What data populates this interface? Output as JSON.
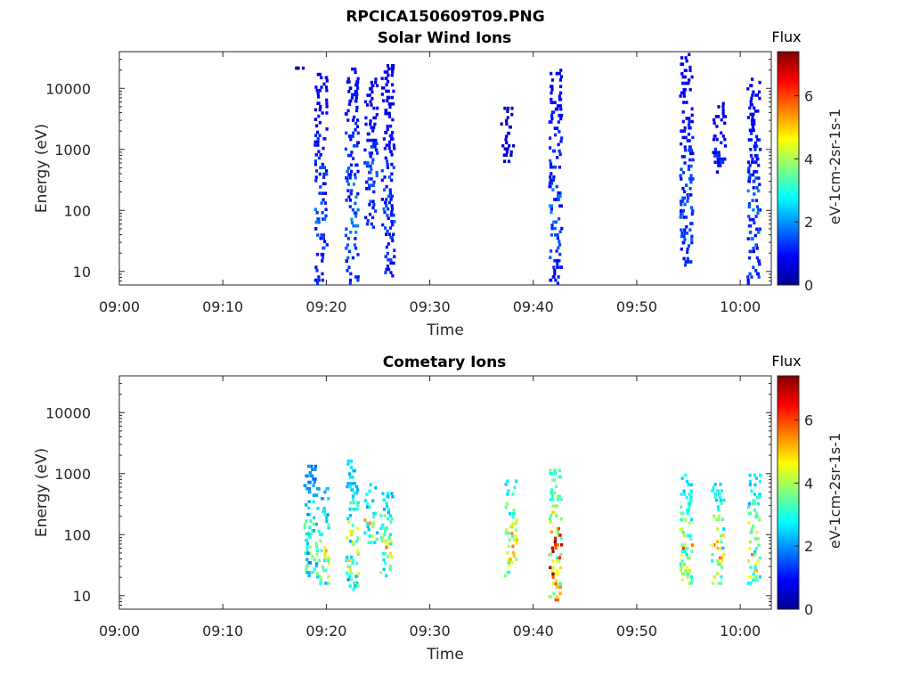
{
  "figure": {
    "title": "RPCICA150609T09.PNG"
  },
  "chart_data": [
    {
      "type": "heatmap",
      "title": "Solar Wind Ions",
      "xlabel": "Time",
      "ylabel": "Energy (eV)",
      "x_ticks": [
        "09:00",
        "09:10",
        "09:20",
        "09:30",
        "09:40",
        "09:50",
        "10:00"
      ],
      "x_range": [
        "09:00",
        "10:03"
      ],
      "y_scale": "log",
      "y_ticks": [
        10,
        100,
        1000,
        10000
      ],
      "y_tick_labels": [
        "10",
        "100",
        "1000",
        "10000"
      ],
      "y_range": [
        6,
        40000
      ],
      "colorbar": {
        "title": "Flux",
        "label": "eV-1cm-2sr-1s-1",
        "range": [
          0,
          7.4
        ],
        "ticks": [
          0,
          2,
          4,
          6
        ],
        "colormap": "jet"
      },
      "bursts": [
        {
          "t": "09:17:40",
          "e_min": 20000,
          "e_max": 23000,
          "flux": 0.6
        },
        {
          "t": "09:19:30",
          "e_min": 6,
          "e_max": 18000,
          "flux": 1.5
        },
        {
          "t": "09:22:30",
          "e_min": 6,
          "e_max": 22000,
          "flux": 1.7
        },
        {
          "t": "09:24:20",
          "e_min": 50,
          "e_max": 15000,
          "flux": 1.5
        },
        {
          "t": "09:26:00",
          "e_min": 8,
          "e_max": 25000,
          "flux": 1.4
        },
        {
          "t": "09:37:30",
          "e_min": 600,
          "e_max": 5000,
          "flux": 0.8
        },
        {
          "t": "09:42:10",
          "e_min": 6,
          "e_max": 21000,
          "flux": 1.6
        },
        {
          "t": "09:54:50",
          "e_min": 12,
          "e_max": 38000,
          "flux": 1.5
        },
        {
          "t": "09:58:00",
          "e_min": 400,
          "e_max": 6000,
          "flux": 1.2
        },
        {
          "t": "10:01:20",
          "e_min": 6,
          "e_max": 15000,
          "flux": 1.6
        }
      ]
    },
    {
      "type": "heatmap",
      "title": "Cometary Ions",
      "xlabel": "Time",
      "ylabel": "Energy (eV)",
      "x_ticks": [
        "09:00",
        "09:10",
        "09:20",
        "09:30",
        "09:40",
        "09:50",
        "10:00"
      ],
      "x_range": [
        "09:00",
        "10:03"
      ],
      "y_scale": "log",
      "y_ticks": [
        10,
        100,
        1000,
        10000
      ],
      "y_tick_labels": [
        "10",
        "100",
        "1000",
        "10000"
      ],
      "y_range": [
        6,
        40000
      ],
      "colorbar": {
        "title": "Flux",
        "label": "eV-1cm-2sr-1s-1",
        "range": [
          0,
          7.4
        ],
        "ticks": [
          0,
          2,
          4,
          6
        ],
        "colormap": "jet"
      },
      "bursts": [
        {
          "t": "09:18:30",
          "e_min": 20,
          "e_max": 1400,
          "flux": 3.5
        },
        {
          "t": "09:19:40",
          "e_min": 15,
          "e_max": 600,
          "flux": 4.2
        },
        {
          "t": "09:22:30",
          "e_min": 12,
          "e_max": 1700,
          "flux": 4.3
        },
        {
          "t": "09:24:20",
          "e_min": 70,
          "e_max": 700,
          "flux": 4.4
        },
        {
          "t": "09:25:50",
          "e_min": 20,
          "e_max": 500,
          "flux": 4.5
        },
        {
          "t": "09:37:50",
          "e_min": 20,
          "e_max": 800,
          "flux": 5.1
        },
        {
          "t": "09:42:10",
          "e_min": 8,
          "e_max": 1200,
          "flux": 6.2
        },
        {
          "t": "09:54:50",
          "e_min": 15,
          "e_max": 1000,
          "flux": 5.0
        },
        {
          "t": "09:57:50",
          "e_min": 15,
          "e_max": 800,
          "flux": 4.9
        },
        {
          "t": "10:01:20",
          "e_min": 15,
          "e_max": 1000,
          "flux": 4.7
        }
      ]
    }
  ]
}
